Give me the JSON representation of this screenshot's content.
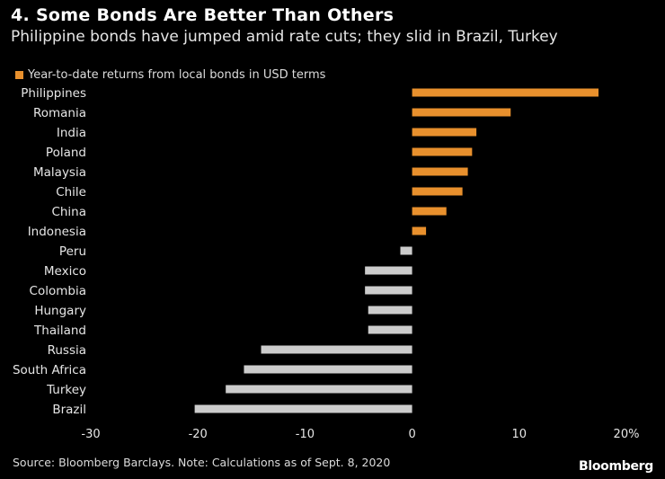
{
  "header": {
    "title": "4. Some Bonds Are Better Than Others",
    "subtitle": "Philippine bonds have jumped amid rate cuts; they slid in Brazil, Turkey"
  },
  "legend": {
    "label": "Year-to-date returns from local bonds in USD terms",
    "color": "#e8902d"
  },
  "footer": {
    "source": "Source: Bloomberg Barclays. Note: Calculations as of Sept. 8, 2020",
    "brand": "Bloomberg"
  },
  "chart_data": {
    "type": "bar",
    "orientation": "horizontal",
    "categories": [
      "Philippines",
      "Romania",
      "India",
      "Poland",
      "Malaysia",
      "Chile",
      "China",
      "Indonesia",
      "Peru",
      "Mexico",
      "Colombia",
      "Hungary",
      "Thailand",
      "Russia",
      "South Africa",
      "Turkey",
      "Brazil"
    ],
    "values": [
      17.4,
      9.2,
      6.0,
      5.6,
      5.2,
      4.7,
      3.2,
      1.3,
      -1.1,
      -4.4,
      -4.4,
      -4.1,
      -4.1,
      -14.1,
      -15.7,
      -17.4,
      -20.3
    ],
    "xlim": [
      -30,
      20
    ],
    "xticks": [
      {
        "value": -30,
        "label": "-30"
      },
      {
        "value": -20,
        "label": "-20"
      },
      {
        "value": -10,
        "label": "-10"
      },
      {
        "value": 0,
        "label": "0"
      },
      {
        "value": 10,
        "label": "10"
      },
      {
        "value": 20,
        "label": "20%"
      }
    ],
    "positive_color": "#e8902d",
    "negative_color": "#cccccc",
    "grid": false
  }
}
